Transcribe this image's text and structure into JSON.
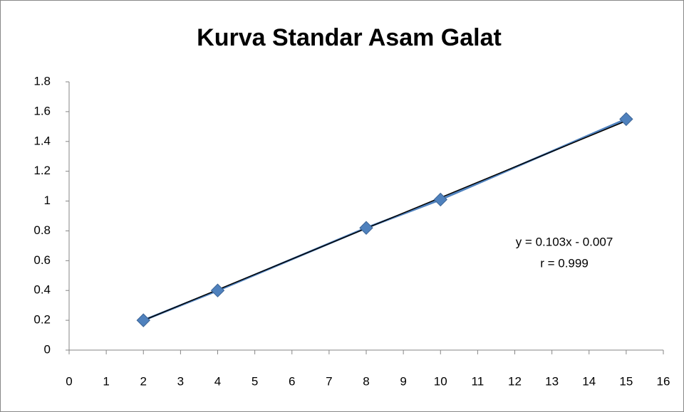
{
  "chart_data": {
    "type": "scatter",
    "title": "Kurva Standar Asam Galat",
    "x": [
      2,
      4,
      8,
      10,
      15
    ],
    "series": [
      {
        "name": "Asam Galat",
        "color": "#4f81bd",
        "values": [
          0.2,
          0.4,
          0.82,
          1.01,
          1.55
        ]
      }
    ],
    "trendline": {
      "slope": 0.103,
      "intercept": -0.007,
      "color": "#000000"
    },
    "annotations": [
      "y = 0.103x - 0.007",
      "r = 0.999"
    ],
    "xlim": [
      0,
      16
    ],
    "xticks": [
      0,
      1,
      2,
      3,
      4,
      5,
      6,
      7,
      8,
      9,
      10,
      11,
      12,
      13,
      14,
      15,
      16
    ],
    "ylim": [
      0,
      1.8
    ],
    "yticks": [
      0,
      0.2,
      0.4,
      0.6,
      0.8,
      1,
      1.2,
      1.4,
      1.6,
      1.8
    ],
    "grid": false,
    "legend": false
  }
}
